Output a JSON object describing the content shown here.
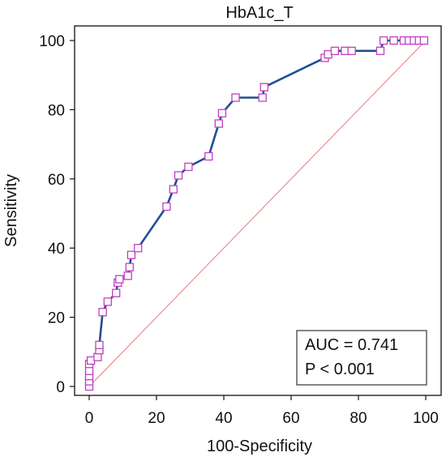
{
  "chart_data": {
    "type": "line",
    "title": "HbA1c_T",
    "xlabel": "100-Specificity",
    "ylabel": "Sensitivity",
    "xlim": [
      0,
      100
    ],
    "ylim": [
      0,
      100
    ],
    "xticks": [
      "0",
      "20",
      "40",
      "60",
      "80",
      "100"
    ],
    "yticks": [
      "0",
      "20",
      "40",
      "60",
      "80",
      "100"
    ],
    "grid": false,
    "colors": {
      "roc_line": "#1f4e96",
      "marker": "#c040c0",
      "reference_line": "#e87a7a",
      "axis": "#111111"
    },
    "annotations": {
      "auc": "AUC = 0.741",
      "p": "P < 0.001"
    },
    "series": [
      {
        "x": [
          0,
          0,
          0,
          0,
          0,
          0.5,
          2.5,
          3,
          3,
          4,
          5.5,
          8,
          8.5,
          9,
          11.5,
          12,
          12.5,
          14.5,
          23,
          25,
          26.5,
          29.5,
          35.5,
          38.5,
          39.5,
          43.5,
          51.5,
          52,
          70,
          71,
          73,
          76,
          78,
          86.5,
          87.5,
          90.5,
          93.5,
          95,
          96.5,
          98,
          99.5
        ],
        "y": [
          0,
          1.5,
          3,
          4.5,
          6.5,
          7.5,
          8.5,
          10.5,
          12,
          21.5,
          24.5,
          27,
          30,
          31,
          32,
          34.5,
          38,
          40,
          52,
          57,
          61,
          63.5,
          66.5,
          76,
          79,
          83.5,
          83.5,
          86.5,
          95,
          96,
          97,
          97,
          97,
          97,
          100,
          100,
          100,
          100,
          100,
          100,
          100
        ]
      },
      {
        "x": [
          0,
          100
        ],
        "y": [
          0,
          100
        ]
      }
    ]
  }
}
